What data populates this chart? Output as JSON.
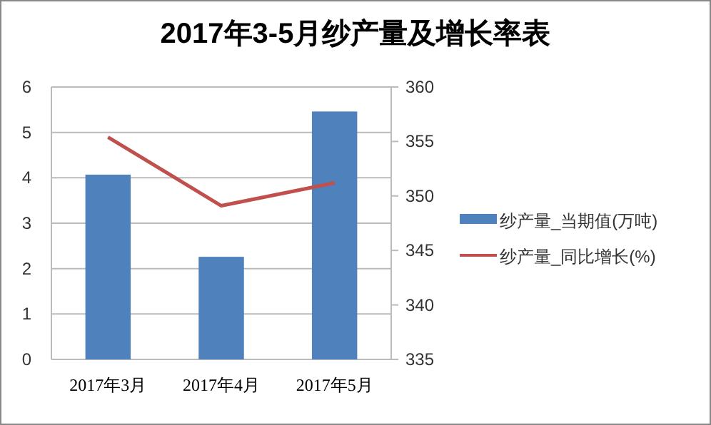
{
  "chart_data": {
    "type": "bar",
    "title": "2017年3-5月纱产量及增长率表",
    "categories": [
      "2017年3月",
      "2017年4月",
      "2017年5月"
    ],
    "series": [
      {
        "name": "纱产量_当期值(万吨)",
        "color": "#4f81bd",
        "values": [
          4.07,
          2.26,
          5.46
        ]
      },
      {
        "name": "纱产量_同比增长(%)",
        "type": "line",
        "axis": "y2",
        "color": "#c0504d",
        "values": [
          355.4,
          349.1,
          351.2
        ]
      }
    ],
    "ylim": [
      0,
      6
    ],
    "yticks": [
      0,
      1,
      2,
      3,
      4,
      5,
      6
    ],
    "y2lim": [
      335,
      360
    ],
    "y2ticks": [
      335,
      340,
      345,
      350,
      355,
      360
    ],
    "grid": "y",
    "legend": "right",
    "marker": "none"
  }
}
